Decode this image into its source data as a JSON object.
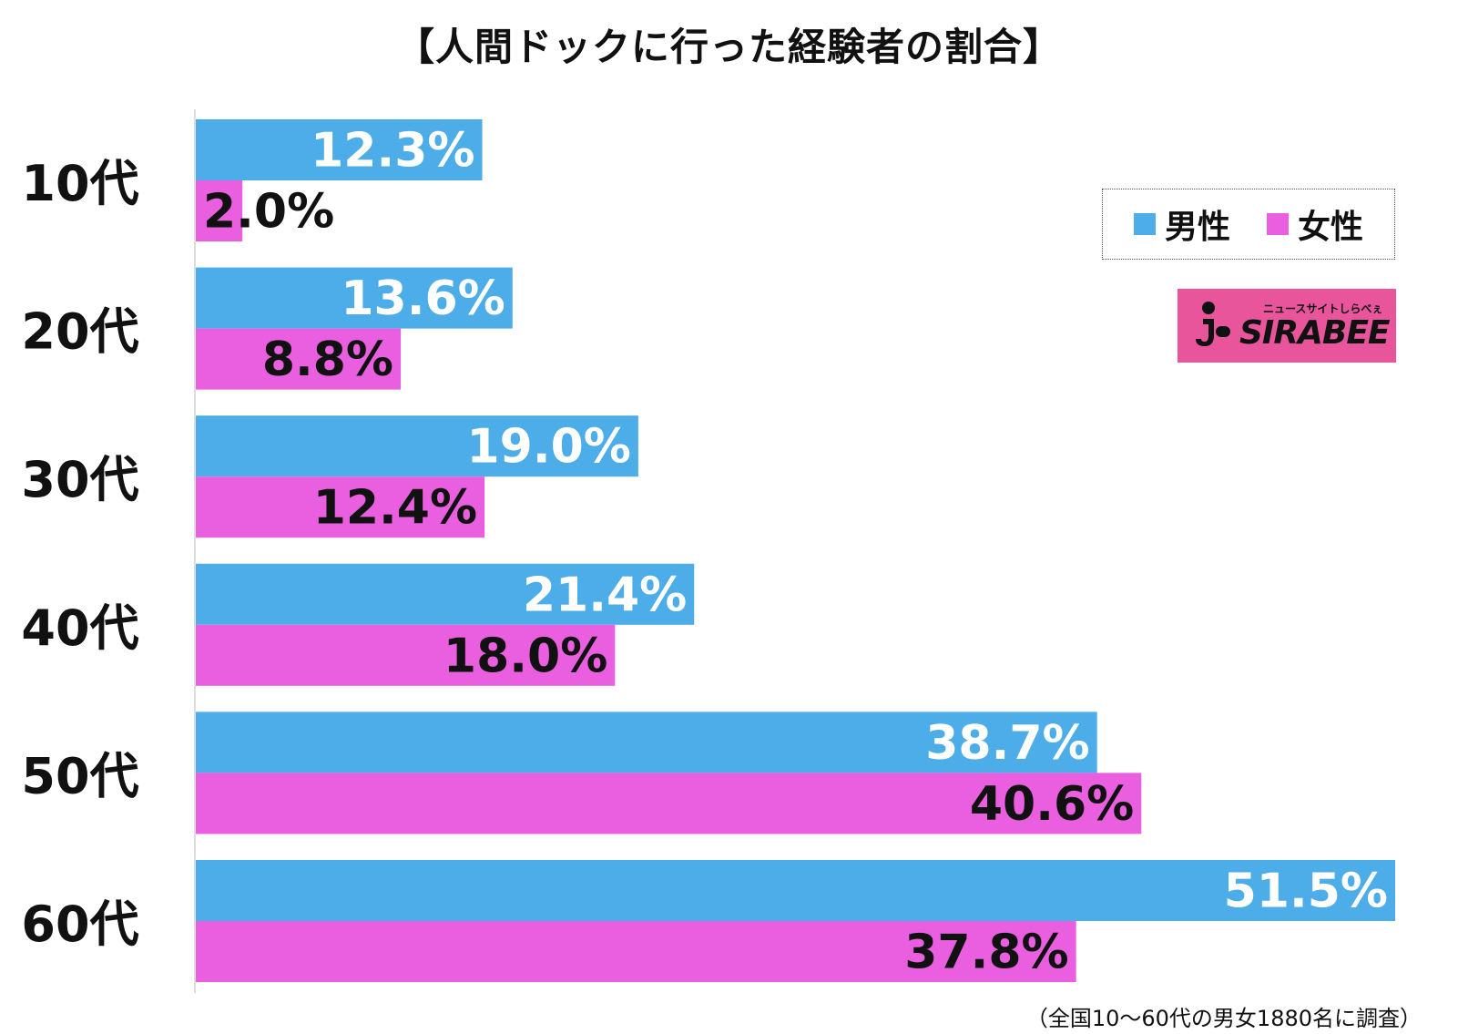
{
  "chart_data": {
    "type": "bar",
    "orientation": "horizontal",
    "title": "【人間ドックに行った経験者の割合】",
    "categories": [
      "10代",
      "20代",
      "30代",
      "40代",
      "50代",
      "60代"
    ],
    "series": [
      {
        "name": "男性",
        "color": "#4dade8",
        "label_color": "#ffffff",
        "values": [
          12.3,
          13.6,
          19.0,
          21.4,
          38.7,
          51.5
        ],
        "labels": [
          "12.3%",
          "13.6%",
          "19.0%",
          "21.4%",
          "38.7%",
          "51.5%"
        ]
      },
      {
        "name": "女性",
        "color": "#ea5ee0",
        "label_color": "#111111",
        "values": [
          2.0,
          8.8,
          12.4,
          18.0,
          40.6,
          37.8
        ],
        "labels": [
          "2.0%",
          "8.8%",
          "12.4%",
          "18.0%",
          "40.6%",
          "37.8%"
        ]
      }
    ],
    "xlim": [
      0,
      51.5
    ],
    "legend_position": "top-right",
    "grid": false
  },
  "logo": {
    "main": "SIRABEE",
    "sub": "ニュースサイトしらべぇ"
  },
  "footnote": "（全国10～60代の男女1880名に調査）"
}
